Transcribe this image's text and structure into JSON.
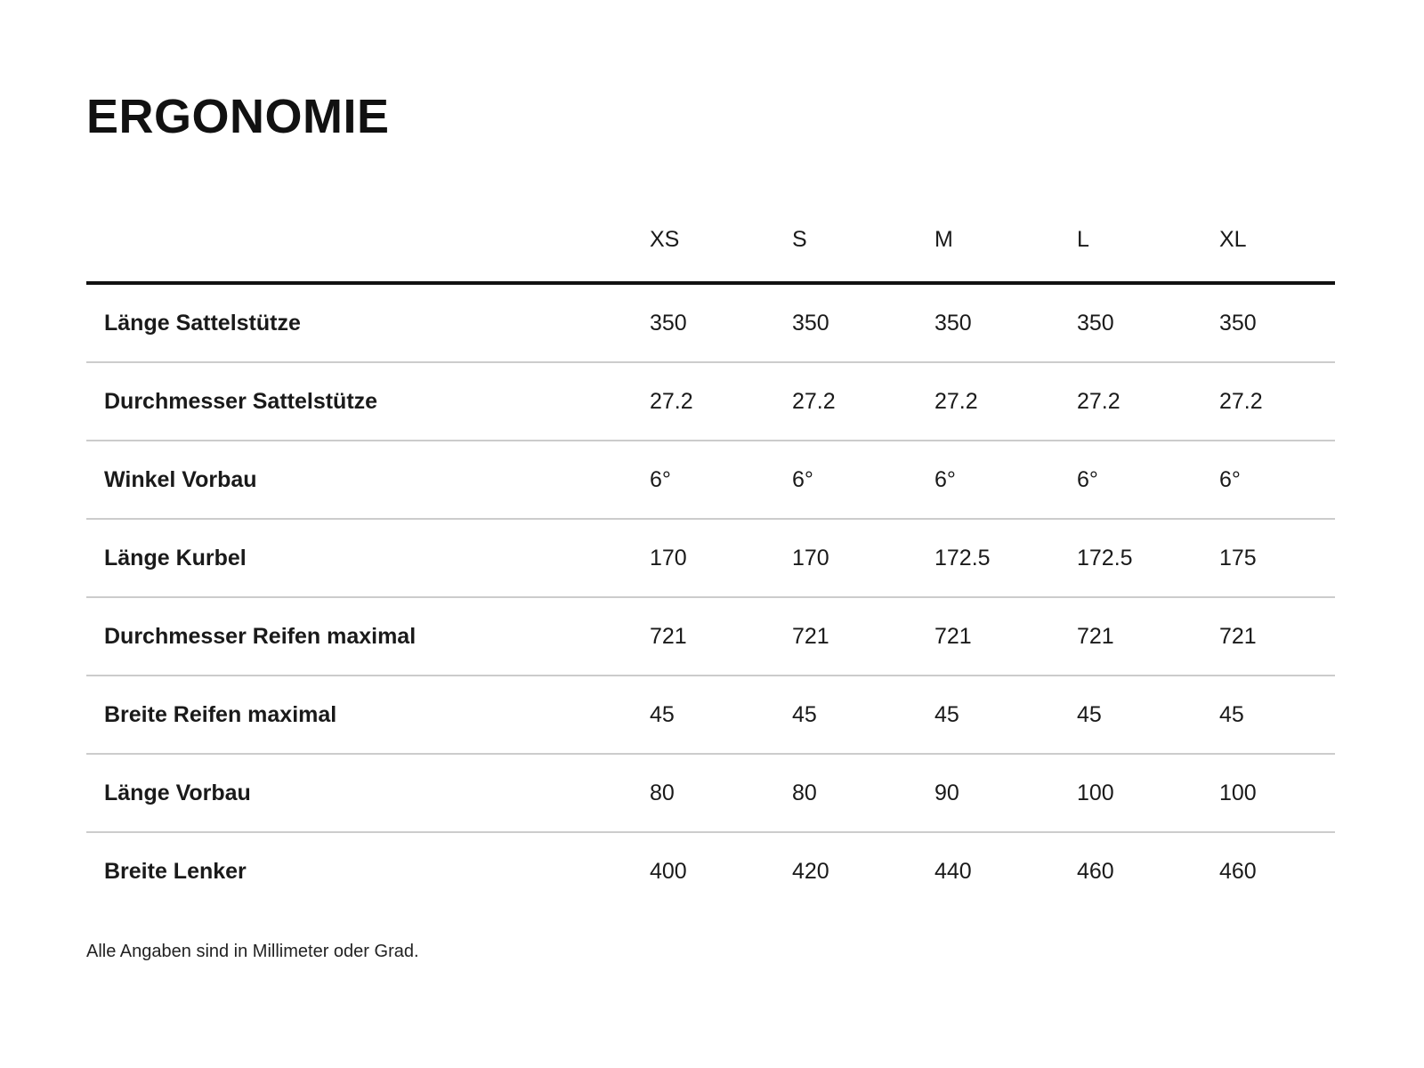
{
  "page": {
    "title": "ERGONOMIE",
    "footnote": "Alle Angaben sind in Millimeter oder Grad."
  },
  "table": {
    "columns": [
      "XS",
      "S",
      "M",
      "L",
      "XL"
    ],
    "rows": [
      {
        "label": "Länge Sattelstütze",
        "values": [
          "350",
          "350",
          "350",
          "350",
          "350"
        ]
      },
      {
        "label": "Durchmesser Sattelstütze",
        "values": [
          "27.2",
          "27.2",
          "27.2",
          "27.2",
          "27.2"
        ]
      },
      {
        "label": "Winkel Vorbau",
        "values": [
          "6°",
          "6°",
          "6°",
          "6°",
          "6°"
        ]
      },
      {
        "label": "Länge Kurbel",
        "values": [
          "170",
          "170",
          "172.5",
          "172.5",
          "175"
        ]
      },
      {
        "label": "Durchmesser Reifen maximal",
        "values": [
          "721",
          "721",
          "721",
          "721",
          "721"
        ]
      },
      {
        "label": "Breite Reifen maximal",
        "values": [
          "45",
          "45",
          "45",
          "45",
          "45"
        ]
      },
      {
        "label": "Länge Vorbau",
        "values": [
          "80",
          "80",
          "90",
          "100",
          "100"
        ]
      },
      {
        "label": "Breite Lenker",
        "values": [
          "400",
          "420",
          "440",
          "460",
          "460"
        ]
      }
    ]
  },
  "colors": {
    "text": "#1a1a1a",
    "heavy_rule": "#111111",
    "divider": "#cccccc",
    "background": "#ffffff"
  }
}
